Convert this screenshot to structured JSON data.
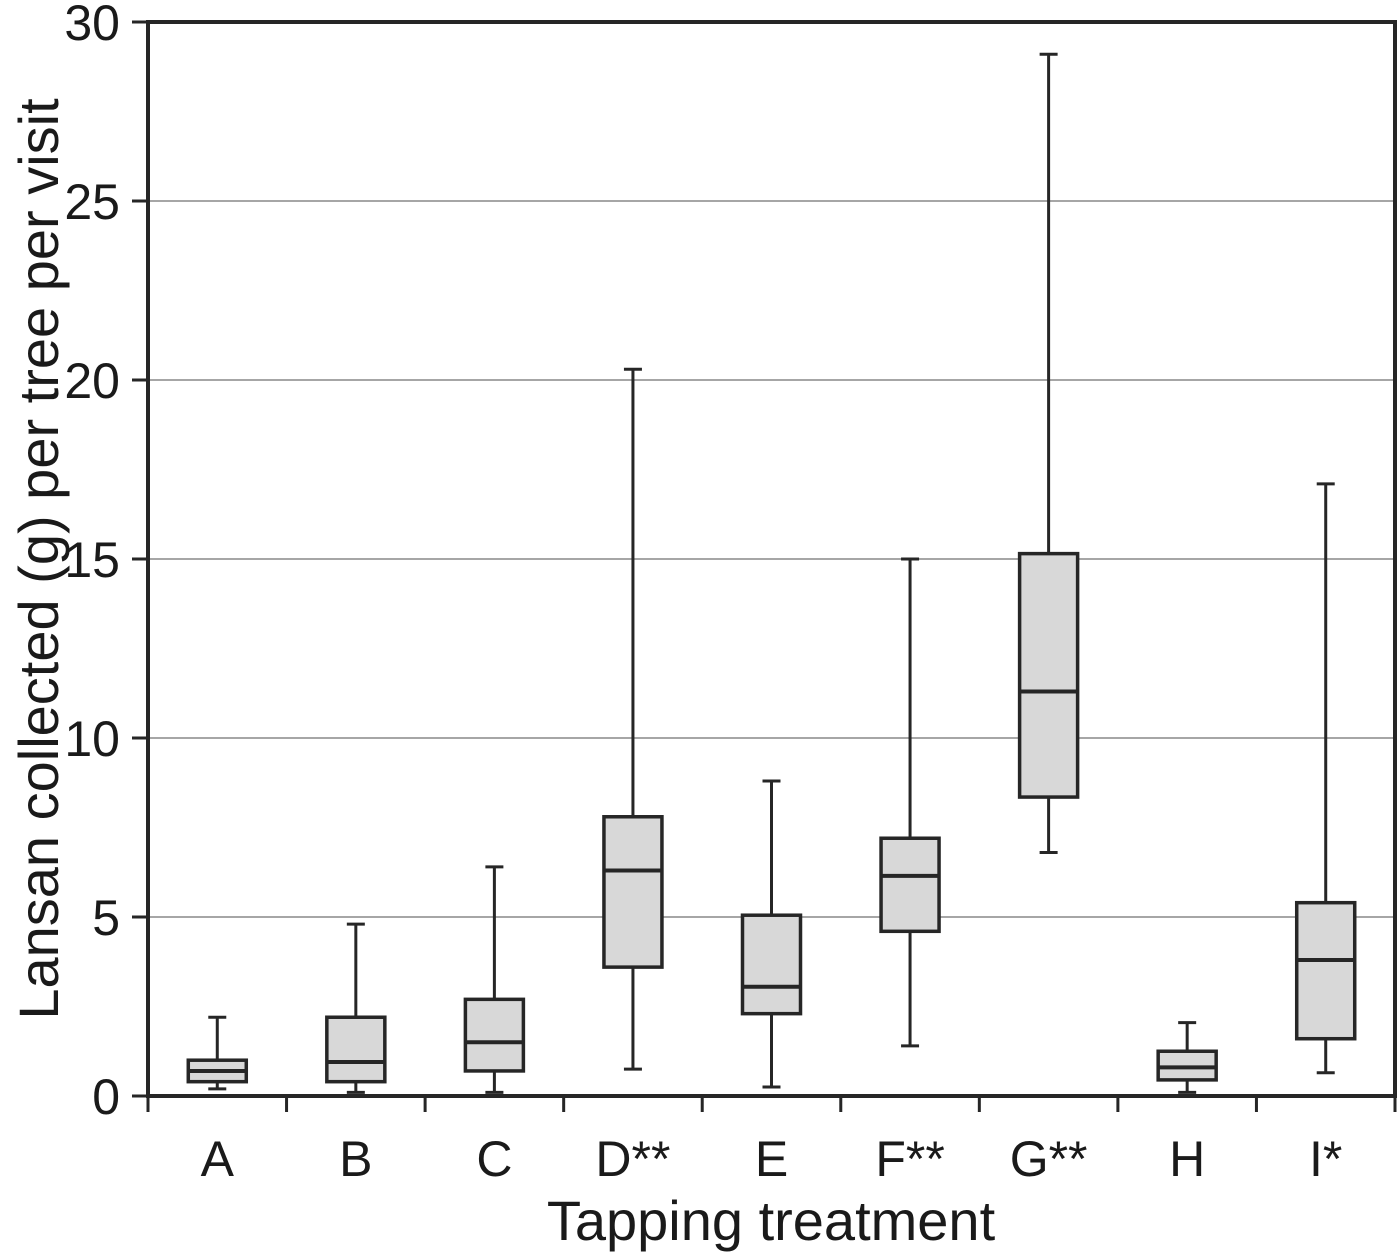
{
  "chart_data": {
    "type": "boxplot",
    "title": "",
    "xlabel": "Tapping treatment",
    "ylabel": "Lansan collected (g) per tree per visit",
    "categories": [
      "A",
      "B",
      "C",
      "D**",
      "E",
      "F**",
      "G**",
      "H",
      "I*"
    ],
    "series": [
      {
        "name": "A",
        "min": 0.2,
        "q1": 0.4,
        "median": 0.7,
        "q3": 1.0,
        "max": 2.2
      },
      {
        "name": "B",
        "min": 0.1,
        "q1": 0.4,
        "median": 0.95,
        "q3": 2.2,
        "max": 4.8
      },
      {
        "name": "C",
        "min": 0.1,
        "q1": 0.7,
        "median": 1.5,
        "q3": 2.7,
        "max": 6.4
      },
      {
        "name": "D**",
        "min": 0.75,
        "q1": 3.6,
        "median": 6.3,
        "q3": 7.8,
        "max": 20.3
      },
      {
        "name": "E",
        "min": 0.25,
        "q1": 2.3,
        "median": 3.05,
        "q3": 5.05,
        "max": 8.8
      },
      {
        "name": "F**",
        "min": 1.4,
        "q1": 4.6,
        "median": 6.15,
        "q3": 7.2,
        "max": 15.0
      },
      {
        "name": "G**",
        "min": 6.8,
        "q1": 8.35,
        "median": 11.3,
        "q3": 15.15,
        "max": 29.1
      },
      {
        "name": "H",
        "min": 0.1,
        "q1": 0.45,
        "median": 0.8,
        "q3": 1.25,
        "max": 2.05
      },
      {
        "name": "I*",
        "min": 0.65,
        "q1": 1.6,
        "median": 3.8,
        "q3": 5.4,
        "max": 17.1
      }
    ],
    "ylim": [
      0,
      30
    ],
    "yticks": [
      0,
      5,
      10,
      15,
      20,
      25,
      30
    ],
    "grid": "horizontal",
    "legend": "none"
  },
  "styles": {
    "background": "#ffffff",
    "box_fill": "#d8d8d8",
    "box_border": "#262626",
    "whisker_color": "#262626",
    "median_color": "#262626",
    "gridline_color": "#a6a6a6",
    "frame_color": "#262626",
    "text_color": "#1a1a1a"
  }
}
